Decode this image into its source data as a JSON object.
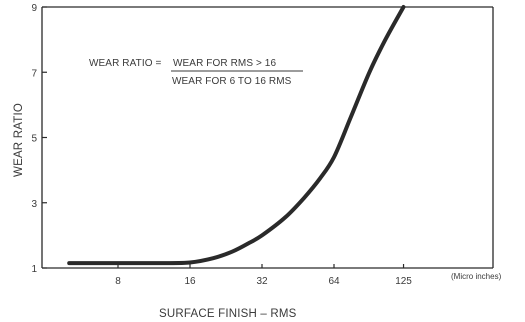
{
  "chart_data": {
    "type": "line",
    "title": "",
    "xlabel": "SURFACE FINISH – RMS",
    "ylabel": "WEAR RATIO",
    "x_units_label": "(Micro inches)",
    "x_scale": "log2",
    "x_ticks": [
      8,
      16,
      32,
      64,
      125
    ],
    "x_tick_labels": [
      "8",
      "16",
      "32",
      "64",
      "125"
    ],
    "y_ticks": [
      1,
      3,
      5,
      7,
      9
    ],
    "y_tick_labels": [
      "1",
      "3",
      "5",
      "7",
      "9"
    ],
    "xlim": [
      4,
      200
    ],
    "ylim": [
      1,
      9
    ],
    "grid": false,
    "annotation": {
      "lhs": "WEAR RATIO = ",
      "numerator": "WEAR FOR RMS > 16",
      "denominator": "WEAR FOR 6 TO 16 RMS"
    },
    "series": [
      {
        "x": [
          5,
          8,
          12,
          16,
          20,
          24,
          28,
          32,
          40,
          48,
          56,
          64,
          75,
          90,
          105,
          125
        ],
        "y": [
          1.15,
          1.15,
          1.15,
          1.17,
          1.3,
          1.5,
          1.75,
          2.0,
          2.55,
          3.15,
          3.75,
          4.4,
          5.6,
          7.0,
          8.0,
          9.0
        ]
      }
    ],
    "colors": {
      "line": "#2a2a2a",
      "axis": "#2a2a2a",
      "text": "#3a3a3a"
    }
  }
}
